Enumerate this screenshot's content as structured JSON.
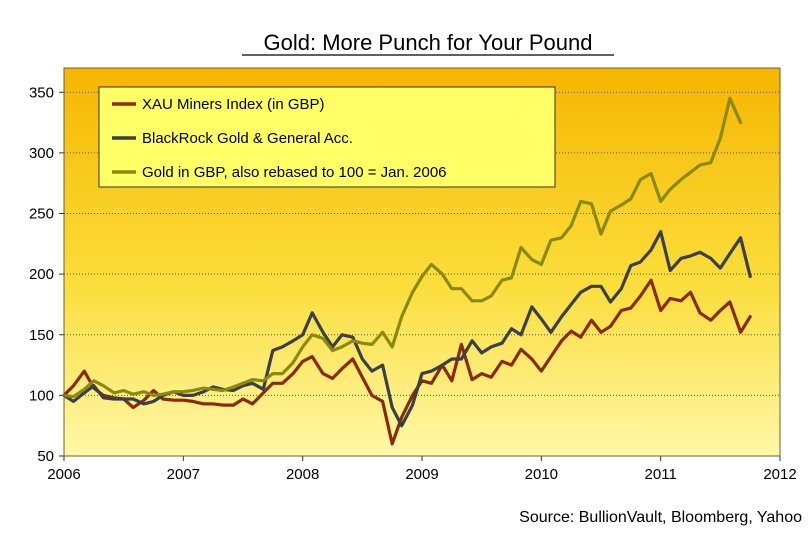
{
  "chart_data": {
    "type": "line",
    "title": "Gold: More Punch for Your Pound",
    "source": "Source: BullionVault, Bloomberg, Yahoo",
    "xlabel": "",
    "ylabel": "",
    "xlim": [
      2006.0,
      2012.0
    ],
    "ylim": [
      50,
      370
    ],
    "x_ticks": [
      "2006",
      "2007",
      "2008",
      "2009",
      "2010",
      "2011",
      "2012"
    ],
    "y_ticks": [
      "50",
      "100",
      "150",
      "200",
      "250",
      "300",
      "350"
    ],
    "grid": "horizontal dotted",
    "legend_position": "top-left",
    "background": "yellow-gradient",
    "series": [
      {
        "name": "XAU Miners Index (in GBP)",
        "color": "#8B2A0A",
        "points": [
          [
            2006.0,
            100
          ],
          [
            2006.08,
            108
          ],
          [
            2006.17,
            120
          ],
          [
            2006.25,
            106
          ],
          [
            2006.33,
            100
          ],
          [
            2006.42,
            98
          ],
          [
            2006.5,
            97
          ],
          [
            2006.58,
            90
          ],
          [
            2006.67,
            96
          ],
          [
            2006.75,
            104
          ],
          [
            2006.83,
            97
          ],
          [
            2006.92,
            96
          ],
          [
            2007.0,
            96
          ],
          [
            2007.08,
            95
          ],
          [
            2007.17,
            93
          ],
          [
            2007.25,
            93
          ],
          [
            2007.33,
            92
          ],
          [
            2007.42,
            92
          ],
          [
            2007.5,
            97
          ],
          [
            2007.58,
            93
          ],
          [
            2007.67,
            102
          ],
          [
            2007.75,
            110
          ],
          [
            2007.83,
            110
          ],
          [
            2007.92,
            118
          ],
          [
            2008.0,
            128
          ],
          [
            2008.08,
            132
          ],
          [
            2008.17,
            118
          ],
          [
            2008.25,
            114
          ],
          [
            2008.33,
            122
          ],
          [
            2008.42,
            130
          ],
          [
            2008.5,
            115
          ],
          [
            2008.58,
            100
          ],
          [
            2008.67,
            95
          ],
          [
            2008.75,
            60
          ],
          [
            2008.83,
            82
          ],
          [
            2008.92,
            100
          ],
          [
            2009.0,
            112
          ],
          [
            2009.08,
            110
          ],
          [
            2009.17,
            125
          ],
          [
            2009.25,
            112
          ],
          [
            2009.33,
            142
          ],
          [
            2009.42,
            113
          ],
          [
            2009.5,
            118
          ],
          [
            2009.58,
            115
          ],
          [
            2009.67,
            128
          ],
          [
            2009.75,
            125
          ],
          [
            2009.83,
            138
          ],
          [
            2009.92,
            130
          ],
          [
            2010.0,
            120
          ],
          [
            2010.08,
            132
          ],
          [
            2010.17,
            145
          ],
          [
            2010.25,
            153
          ],
          [
            2010.33,
            148
          ],
          [
            2010.42,
            162
          ],
          [
            2010.5,
            152
          ],
          [
            2010.58,
            157
          ],
          [
            2010.67,
            170
          ],
          [
            2010.75,
            172
          ],
          [
            2010.83,
            182
          ],
          [
            2010.92,
            195
          ],
          [
            2011.0,
            170
          ],
          [
            2011.08,
            180
          ],
          [
            2011.17,
            178
          ],
          [
            2011.25,
            185
          ],
          [
            2011.33,
            168
          ],
          [
            2011.42,
            162
          ],
          [
            2011.5,
            170
          ],
          [
            2011.58,
            177
          ],
          [
            2011.67,
            152
          ],
          [
            2011.75,
            165
          ]
        ]
      },
      {
        "name": "BlackRock Gold & General Acc.",
        "color": "#3A3F4A",
        "points": [
          [
            2006.0,
            100
          ],
          [
            2006.08,
            95
          ],
          [
            2006.17,
            102
          ],
          [
            2006.25,
            108
          ],
          [
            2006.33,
            98
          ],
          [
            2006.42,
            97
          ],
          [
            2006.5,
            97
          ],
          [
            2006.58,
            97
          ],
          [
            2006.67,
            93
          ],
          [
            2006.75,
            95
          ],
          [
            2006.83,
            100
          ],
          [
            2006.92,
            103
          ],
          [
            2007.0,
            100
          ],
          [
            2007.08,
            100
          ],
          [
            2007.17,
            103
          ],
          [
            2007.25,
            107
          ],
          [
            2007.33,
            105
          ],
          [
            2007.42,
            104
          ],
          [
            2007.5,
            108
          ],
          [
            2007.58,
            110
          ],
          [
            2007.67,
            105
          ],
          [
            2007.75,
            137
          ],
          [
            2007.83,
            140
          ],
          [
            2007.92,
            145
          ],
          [
            2008.0,
            150
          ],
          [
            2008.08,
            168
          ],
          [
            2008.17,
            152
          ],
          [
            2008.25,
            140
          ],
          [
            2008.33,
            150
          ],
          [
            2008.42,
            148
          ],
          [
            2008.5,
            130
          ],
          [
            2008.58,
            120
          ],
          [
            2008.67,
            125
          ],
          [
            2008.75,
            90
          ],
          [
            2008.83,
            75
          ],
          [
            2008.92,
            92
          ],
          [
            2009.0,
            118
          ],
          [
            2009.08,
            120
          ],
          [
            2009.17,
            125
          ],
          [
            2009.25,
            130
          ],
          [
            2009.33,
            130
          ],
          [
            2009.42,
            145
          ],
          [
            2009.5,
            135
          ],
          [
            2009.58,
            140
          ],
          [
            2009.67,
            143
          ],
          [
            2009.75,
            155
          ],
          [
            2009.83,
            150
          ],
          [
            2009.92,
            173
          ],
          [
            2010.0,
            163
          ],
          [
            2010.08,
            152
          ],
          [
            2010.17,
            165
          ],
          [
            2010.25,
            175
          ],
          [
            2010.33,
            185
          ],
          [
            2010.42,
            190
          ],
          [
            2010.5,
            190
          ],
          [
            2010.58,
            177
          ],
          [
            2010.67,
            188
          ],
          [
            2010.75,
            207
          ],
          [
            2010.83,
            210
          ],
          [
            2010.92,
            220
          ],
          [
            2011.0,
            235
          ],
          [
            2011.08,
            203
          ],
          [
            2011.17,
            213
          ],
          [
            2011.25,
            215
          ],
          [
            2011.33,
            218
          ],
          [
            2011.42,
            213
          ],
          [
            2011.5,
            205
          ],
          [
            2011.58,
            217
          ],
          [
            2011.67,
            230
          ],
          [
            2011.75,
            198
          ]
        ]
      },
      {
        "name": "Gold in GBP, also rebased to 100 = Jan. 2006",
        "color": "#8A8A10",
        "points": [
          [
            2006.0,
            100
          ],
          [
            2006.08,
            99
          ],
          [
            2006.17,
            105
          ],
          [
            2006.25,
            112
          ],
          [
            2006.33,
            108
          ],
          [
            2006.42,
            102
          ],
          [
            2006.5,
            104
          ],
          [
            2006.58,
            101
          ],
          [
            2006.67,
            103
          ],
          [
            2006.75,
            100
          ],
          [
            2006.83,
            101
          ],
          [
            2006.92,
            103
          ],
          [
            2007.0,
            103
          ],
          [
            2007.08,
            104
          ],
          [
            2007.17,
            106
          ],
          [
            2007.25,
            105
          ],
          [
            2007.33,
            104
          ],
          [
            2007.42,
            107
          ],
          [
            2007.5,
            110
          ],
          [
            2007.58,
            113
          ],
          [
            2007.67,
            112
          ],
          [
            2007.75,
            118
          ],
          [
            2007.83,
            118
          ],
          [
            2007.92,
            127
          ],
          [
            2008.0,
            140
          ],
          [
            2008.08,
            150
          ],
          [
            2008.17,
            147
          ],
          [
            2008.25,
            137
          ],
          [
            2008.33,
            140
          ],
          [
            2008.42,
            145
          ],
          [
            2008.5,
            143
          ],
          [
            2008.58,
            142
          ],
          [
            2008.67,
            152
          ],
          [
            2008.75,
            140
          ],
          [
            2008.83,
            165
          ],
          [
            2008.92,
            185
          ],
          [
            2009.0,
            198
          ],
          [
            2009.08,
            208
          ],
          [
            2009.17,
            200
          ],
          [
            2009.25,
            188
          ],
          [
            2009.33,
            188
          ],
          [
            2009.42,
            178
          ],
          [
            2009.5,
            178
          ],
          [
            2009.58,
            182
          ],
          [
            2009.67,
            195
          ],
          [
            2009.75,
            197
          ],
          [
            2009.83,
            222
          ],
          [
            2009.92,
            212
          ],
          [
            2010.0,
            208
          ],
          [
            2010.08,
            228
          ],
          [
            2010.17,
            230
          ],
          [
            2010.25,
            240
          ],
          [
            2010.33,
            260
          ],
          [
            2010.42,
            258
          ],
          [
            2010.5,
            233
          ],
          [
            2010.58,
            252
          ],
          [
            2010.67,
            257
          ],
          [
            2010.75,
            262
          ],
          [
            2010.83,
            278
          ],
          [
            2010.92,
            283
          ],
          [
            2011.0,
            260
          ],
          [
            2011.08,
            270
          ],
          [
            2011.17,
            278
          ],
          [
            2011.25,
            284
          ],
          [
            2011.33,
            290
          ],
          [
            2011.42,
            292
          ],
          [
            2011.5,
            312
          ],
          [
            2011.58,
            345
          ],
          [
            2011.67,
            325
          ]
        ]
      }
    ]
  }
}
